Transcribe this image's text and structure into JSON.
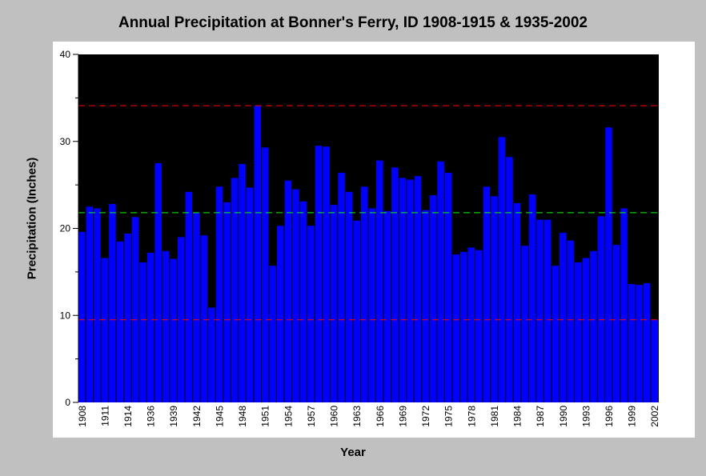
{
  "chart_data": {
    "type": "bar",
    "title": "Annual Precipitation at Bonner's Ferry, ID 1908-1915 & 1935-2002",
    "xlabel": "Year",
    "ylabel": "Precipitation (Inches)",
    "ylim": [
      0,
      40
    ],
    "yticks": [
      0,
      10,
      20,
      30,
      40
    ],
    "bar_color": "#0000ff",
    "background_color": "#000000",
    "categories": [
      "1908",
      "1909",
      "1910",
      "1911",
      "1912",
      "1913",
      "1914",
      "1915",
      "1935",
      "1936",
      "1937",
      "1938",
      "1939",
      "1940",
      "1941",
      "1942",
      "1943",
      "1944",
      "1945",
      "1946",
      "1947",
      "1948",
      "1949",
      "1950",
      "1951",
      "1952",
      "1953",
      "1954",
      "1955",
      "1956",
      "1957",
      "1958",
      "1959",
      "1960",
      "1961",
      "1962",
      "1963",
      "1964",
      "1965",
      "1966",
      "1967",
      "1968",
      "1969",
      "1970",
      "1971",
      "1972",
      "1973",
      "1974",
      "1975",
      "1976",
      "1977",
      "1978",
      "1979",
      "1980",
      "1981",
      "1982",
      "1983",
      "1984",
      "1985",
      "1986",
      "1987",
      "1988",
      "1989",
      "1990",
      "1991",
      "1992",
      "1993",
      "1994",
      "1995",
      "1996",
      "1997",
      "1998",
      "1999",
      "2000",
      "2001",
      "2002"
    ],
    "xtick_labels": [
      "1908",
      "1911",
      "1914",
      "1936",
      "1939",
      "1942",
      "1945",
      "1948",
      "1951",
      "1954",
      "1957",
      "1960",
      "1963",
      "1966",
      "1969",
      "1972",
      "1975",
      "1978",
      "1981",
      "1984",
      "1987",
      "1990",
      "1993",
      "1996",
      "1999",
      "2002"
    ],
    "values": [
      19.6,
      22.5,
      22.3,
      16.6,
      22.8,
      18.5,
      19.4,
      21.3,
      16.1,
      17.2,
      27.5,
      17.4,
      16.5,
      19.0,
      24.2,
      21.8,
      19.2,
      10.9,
      24.8,
      23.0,
      25.8,
      27.4,
      24.7,
      34.1,
      29.3,
      15.7,
      20.3,
      25.5,
      24.5,
      23.1,
      20.3,
      29.5,
      29.4,
      22.7,
      26.4,
      24.2,
      20.9,
      24.8,
      22.3,
      27.8,
      22.0,
      27.0,
      25.8,
      25.6,
      26.0,
      22.1,
      23.8,
      27.7,
      26.4,
      17.0,
      17.3,
      17.8,
      17.5,
      24.8,
      23.7,
      30.5,
      28.2,
      22.9,
      18.0,
      23.9,
      21.0,
      21.0,
      15.7,
      19.5,
      18.6,
      16.1,
      16.6,
      17.4,
      21.4,
      31.6,
      18.1,
      22.3,
      13.6,
      13.5,
      13.7,
      9.5
    ],
    "reference_lines": [
      {
        "value": 34.1,
        "color": "#ff0000",
        "style": "dashed"
      },
      {
        "value": 21.8,
        "color": "#00ff00",
        "style": "dashed"
      },
      {
        "value": 9.5,
        "color": "#ff0000",
        "style": "dashed"
      }
    ]
  }
}
